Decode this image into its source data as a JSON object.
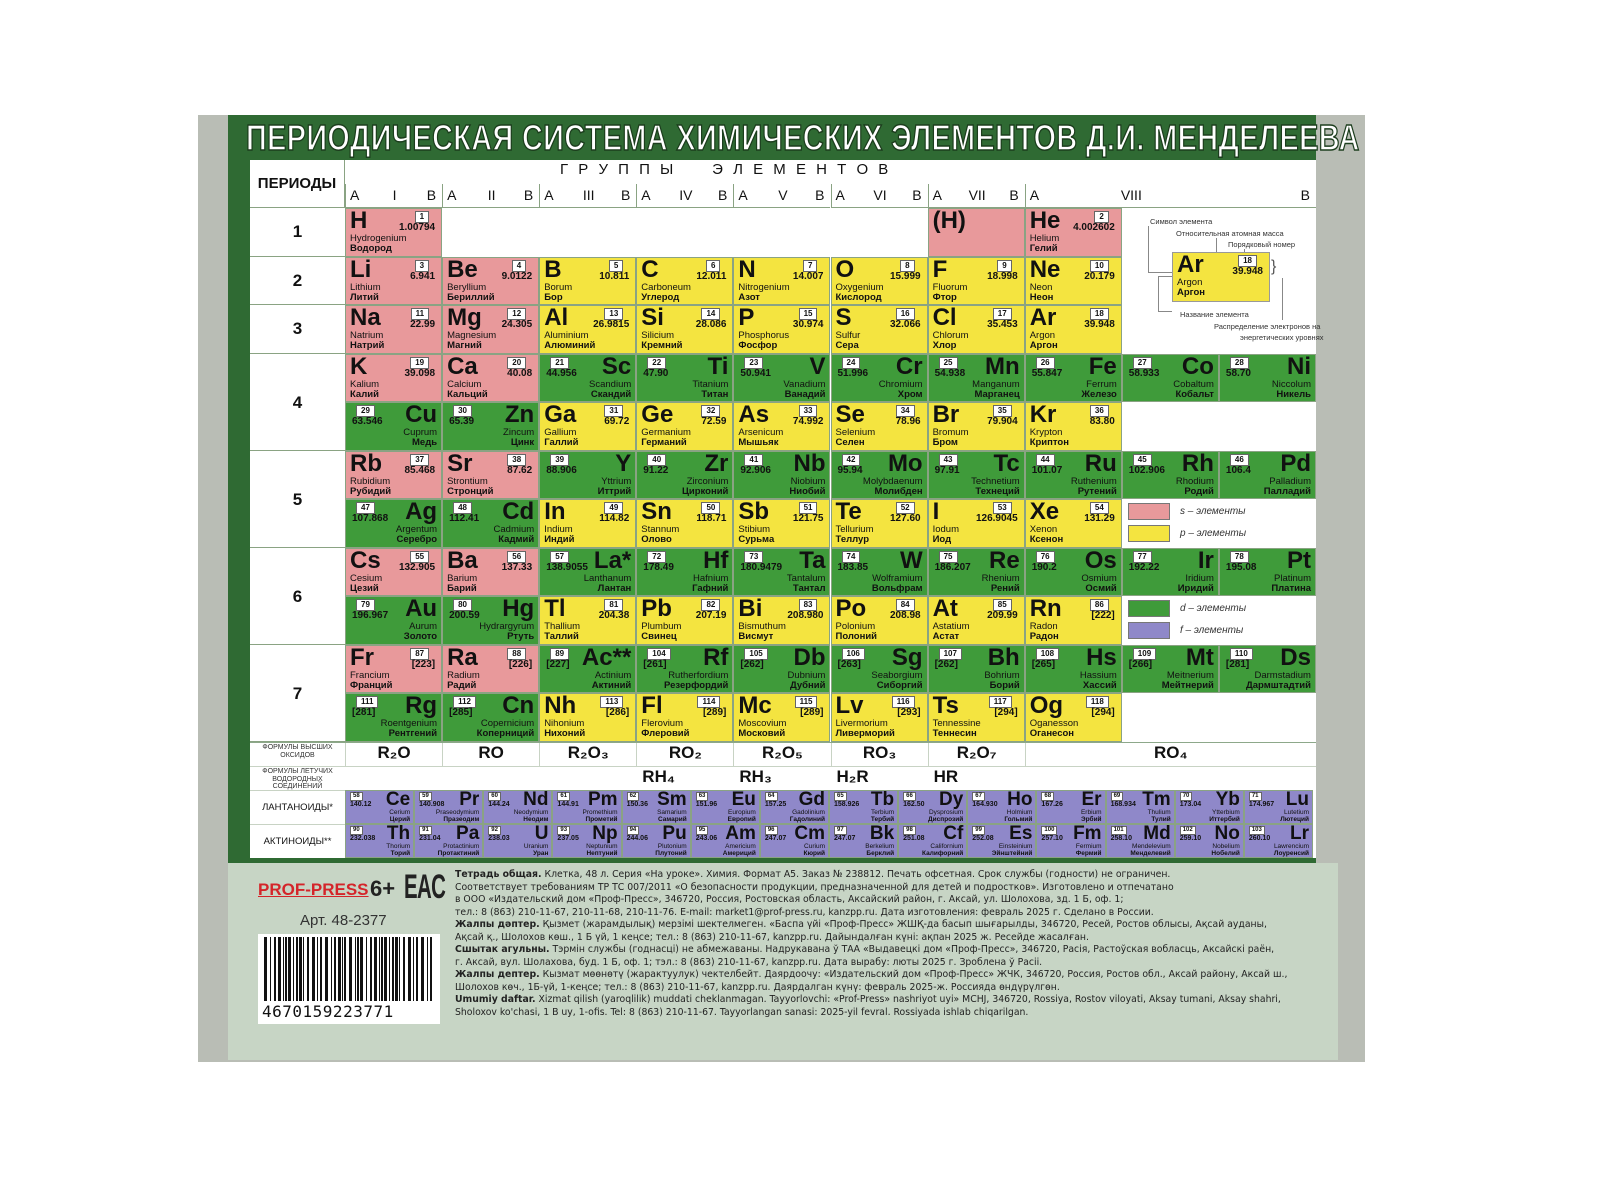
{
  "title": "ПЕРИОДИЧЕСКАЯ СИСТЕМА ХИМИЧЕСКИХ ЭЛЕМЕНТОВ Д.И. МЕНДЕЛЕЕВА",
  "colors": {
    "s": "#e8999b",
    "p": "#f4e440",
    "d": "#3f9b3a",
    "f": "#8f88c9",
    "board": "#2f6a33"
  },
  "table": {
    "periods_header": "ПЕРИОДЫ",
    "groups_title": "Г Р У П П Ы     Э Л Е М Е Н Т О В",
    "groups": [
      "I",
      "II",
      "III",
      "IV",
      "V",
      "VI",
      "VII",
      "VIII"
    ],
    "sub_a": "A",
    "sub_b": "B",
    "periods": [
      "1",
      "2",
      "3",
      "4",
      "5",
      "6",
      "7"
    ],
    "rows": [
      [
        [
          "H",
          1,
          "1.00794",
          "Hydrogenium",
          "Водород",
          "s"
        ],
        null,
        null,
        null,
        null,
        null,
        [
          "(H)",
          null,
          null,
          null,
          null,
          "s"
        ],
        [
          "He",
          2,
          "4.002602",
          "Helium",
          "Гелий",
          "s"
        ],
        null,
        null
      ],
      [
        [
          "Li",
          3,
          "6.941",
          "Lithium",
          "Литий",
          "s"
        ],
        [
          "Be",
          4,
          "9.0122",
          "Beryllium",
          "Бериллий",
          "s"
        ],
        [
          "B",
          5,
          "10.811",
          "Borum",
          "Бор",
          "p"
        ],
        [
          "C",
          6,
          "12.011",
          "Carboneum",
          "Углерод",
          "p"
        ],
        [
          "N",
          7,
          "14.007",
          "Nitrogenium",
          "Азот",
          "p"
        ],
        [
          "O",
          8,
          "15.999",
          "Oxygenium",
          "Кислород",
          "p"
        ],
        [
          "F",
          9,
          "18.998",
          "Fluorum",
          "Фтор",
          "p"
        ],
        [
          "Ne",
          10,
          "20.179",
          "Neon",
          "Неон",
          "p"
        ],
        null,
        null
      ],
      [
        [
          "Na",
          11,
          "22.99",
          "Natrium",
          "Натрий",
          "s"
        ],
        [
          "Mg",
          12,
          "24.305",
          "Magnesium",
          "Магний",
          "s"
        ],
        [
          "Al",
          13,
          "26.9815",
          "Aluminium",
          "Алюминий",
          "p"
        ],
        [
          "Si",
          14,
          "28.086",
          "Silicium",
          "Кремний",
          "p"
        ],
        [
          "P",
          15,
          "30.974",
          "Phosphorus",
          "Фосфор",
          "p"
        ],
        [
          "S",
          16,
          "32.066",
          "Sulfur",
          "Сера",
          "p"
        ],
        [
          "Cl",
          17,
          "35.453",
          "Chlorum",
          "Хлор",
          "p"
        ],
        [
          "Ar",
          18,
          "39.948",
          "Argon",
          "Аргон",
          "p"
        ],
        null,
        null
      ],
      [
        [
          "K",
          19,
          "39.098",
          "Kalium",
          "Калий",
          "s"
        ],
        [
          "Ca",
          20,
          "40.08",
          "Calcium",
          "Кальций",
          "s"
        ],
        [
          "Sc",
          21,
          "44.956",
          "Scandium",
          "Скандий",
          "d"
        ],
        [
          "Ti",
          22,
          "47.90",
          "Titanium",
          "Титан",
          "d"
        ],
        [
          "V",
          23,
          "50.941",
          "Vanadium",
          "Ванадий",
          "d"
        ],
        [
          "Cr",
          24,
          "51.996",
          "Chromium",
          "Хром",
          "d"
        ],
        [
          "Mn",
          25,
          "54.938",
          "Manganum",
          "Марганец",
          "d"
        ],
        [
          "Fe",
          26,
          "55.847",
          "Ferrum",
          "Железо",
          "d"
        ],
        [
          "Co",
          27,
          "58.933",
          "Cobaltum",
          "Кобальт",
          "d"
        ],
        [
          "Ni",
          28,
          "58.70",
          "Niccolum",
          "Никель",
          "d"
        ]
      ],
      [
        [
          "Cu",
          29,
          "63.546",
          "Cuprum",
          "Медь",
          "d"
        ],
        [
          "Zn",
          30,
          "65.39",
          "Zincum",
          "Цинк",
          "d"
        ],
        [
          "Ga",
          31,
          "69.72",
          "Gallium",
          "Галлий",
          "p"
        ],
        [
          "Ge",
          32,
          "72.59",
          "Germanium",
          "Германий",
          "p"
        ],
        [
          "As",
          33,
          "74.992",
          "Arsenicum",
          "Мышьяк",
          "p"
        ],
        [
          "Se",
          34,
          "78.96",
          "Selenium",
          "Селен",
          "p"
        ],
        [
          "Br",
          35,
          "79.904",
          "Bromum",
          "Бром",
          "p"
        ],
        [
          "Kr",
          36,
          "83.80",
          "Krypton",
          "Криптон",
          "p"
        ],
        null,
        null
      ],
      [
        [
          "Rb",
          37,
          "85.468",
          "Rubidium",
          "Рубидий",
          "s"
        ],
        [
          "Sr",
          38,
          "87.62",
          "Strontium",
          "Стронций",
          "s"
        ],
        [
          "Y",
          39,
          "88.906",
          "Yttrium",
          "Иттрий",
          "d"
        ],
        [
          "Zr",
          40,
          "91.22",
          "Zirconium",
          "Цирконий",
          "d"
        ],
        [
          "Nb",
          41,
          "92.906",
          "Niobium",
          "Ниобий",
          "d"
        ],
        [
          "Mo",
          42,
          "95.94",
          "Molybdaenum",
          "Молибден",
          "d"
        ],
        [
          "Tc",
          43,
          "97.91",
          "Technetium",
          "Технеций",
          "d"
        ],
        [
          "Ru",
          44,
          "101.07",
          "Ruthenium",
          "Рутений",
          "d"
        ],
        [
          "Rh",
          45,
          "102.906",
          "Rhodium",
          "Родий",
          "d"
        ],
        [
          "Pd",
          46,
          "106.4",
          "Palladium",
          "Палладий",
          "d"
        ]
      ],
      [
        [
          "Ag",
          47,
          "107.868",
          "Argentum",
          "Серебро",
          "d"
        ],
        [
          "Cd",
          48,
          "112.41",
          "Cadmium",
          "Кадмий",
          "d"
        ],
        [
          "In",
          49,
          "114.82",
          "Indium",
          "Индий",
          "p"
        ],
        [
          "Sn",
          50,
          "118.71",
          "Stannum",
          "Олово",
          "p"
        ],
        [
          "Sb",
          51,
          "121.75",
          "Stibium",
          "Сурьма",
          "p"
        ],
        [
          "Te",
          52,
          "127.60",
          "Tellurium",
          "Теллур",
          "p"
        ],
        [
          "I",
          53,
          "126.9045",
          "Iodum",
          "Иод",
          "p"
        ],
        [
          "Xe",
          54,
          "131.29",
          "Xenon",
          "Ксенон",
          "p"
        ],
        null,
        null
      ],
      [
        [
          "Cs",
          55,
          "132.905",
          "Cesium",
          "Цезий",
          "s"
        ],
        [
          "Ba",
          56,
          "137.33",
          "Barium",
          "Барий",
          "s"
        ],
        [
          "La*",
          57,
          "138.9055",
          "Lanthanum",
          "Лантан",
          "d"
        ],
        [
          "Hf",
          72,
          "178.49",
          "Hafnium",
          "Гафний",
          "d"
        ],
        [
          "Ta",
          73,
          "180.9479",
          "Tantalum",
          "Тантал",
          "d"
        ],
        [
          "W",
          74,
          "183.85",
          "Wolframium",
          "Вольфрам",
          "d"
        ],
        [
          "Re",
          75,
          "186.207",
          "Rhenium",
          "Рений",
          "d"
        ],
        [
          "Os",
          76,
          "190.2",
          "Osmium",
          "Осмий",
          "d"
        ],
        [
          "Ir",
          77,
          "192.22",
          "Iridium",
          "Иридий",
          "d"
        ],
        [
          "Pt",
          78,
          "195.08",
          "Platinum",
          "Платина",
          "d"
        ]
      ],
      [
        [
          "Au",
          79,
          "196.967",
          "Aurum",
          "Золото",
          "d"
        ],
        [
          "Hg",
          80,
          "200.59",
          "Hydrargyrum",
          "Ртуть",
          "d"
        ],
        [
          "Tl",
          81,
          "204.38",
          "Thallium",
          "Таллий",
          "p"
        ],
        [
          "Pb",
          82,
          "207.19",
          "Plumbum",
          "Свинец",
          "p"
        ],
        [
          "Bi",
          83,
          "208.980",
          "Bismuthum",
          "Висмут",
          "p"
        ],
        [
          "Po",
          84,
          "208.98",
          "Polonium",
          "Полоний",
          "p"
        ],
        [
          "At",
          85,
          "209.99",
          "Astatium",
          "Астат",
          "p"
        ],
        [
          "Rn",
          86,
          "[222]",
          "Radon",
          "Радон",
          "p"
        ],
        null,
        null
      ],
      [
        [
          "Fr",
          87,
          "[223]",
          "Francium",
          "Франций",
          "s"
        ],
        [
          "Ra",
          88,
          "[226]",
          "Radium",
          "Радий",
          "s"
        ],
        [
          "Ac**",
          89,
          "[227]",
          "Actinium",
          "Актиний",
          "d"
        ],
        [
          "Rf",
          104,
          "[261]",
          "Rutherfordium",
          "Резерфордий",
          "d"
        ],
        [
          "Db",
          105,
          "[262]",
          "Dubnium",
          "Дубний",
          "d"
        ],
        [
          "Sg",
          106,
          "[263]",
          "Seaborgium",
          "Сиборгий",
          "d"
        ],
        [
          "Bh",
          107,
          "[262]",
          "Bohrium",
          "Борий",
          "d"
        ],
        [
          "Hs",
          108,
          "[265]",
          "Hassium",
          "Хассий",
          "d"
        ],
        [
          "Mt",
          109,
          "[266]",
          "Meitnerium",
          "Мейтнерий",
          "d"
        ],
        [
          "Ds",
          110,
          "[281]",
          "Darmstadium",
          "Дармштадтий",
          "d"
        ]
      ],
      [
        [
          "Rg",
          111,
          "[281]",
          "Roentgenium",
          "Рентгений",
          "d"
        ],
        [
          "Cn",
          112,
          "[285]",
          "Copernicium",
          "Коперниций",
          "d"
        ],
        [
          "Nh",
          113,
          "[286]",
          "Nihonium",
          "Нихоний",
          "p"
        ],
        [
          "Fl",
          114,
          "[289]",
          "Flerovium",
          "Флеровий",
          "p"
        ],
        [
          "Mc",
          115,
          "[289]",
          "Moscovium",
          "Московий",
          "p"
        ],
        [
          "Lv",
          116,
          "[293]",
          "Livermorium",
          "Ливерморий",
          "p"
        ],
        [
          "Ts",
          117,
          "[294]",
          "Tennessine",
          "Теннесин",
          "p"
        ],
        [
          "Og",
          118,
          "[294]",
          "Oganesson",
          "Оганесон",
          "p"
        ],
        null,
        null
      ]
    ],
    "oxides": {
      "label": "ФОРМУЛЫ ВЫСШИХ ОКСИДОВ",
      "values": [
        "R₂O",
        "RO",
        "R₂O₃",
        "RO₂",
        "R₂O₅",
        "RO₃",
        "R₂O₇",
        "RO₄"
      ]
    },
    "hydrides": {
      "label": "ФОРМУЛЫ ЛЕТУЧИХ ВОДОРОДНЫХ СОЕДИНЕНИЙ",
      "values": [
        "",
        "",
        "",
        "RH₄",
        "RH₃",
        "H₂R",
        "HR",
        ""
      ]
    },
    "lanthanides": {
      "label": "ЛАНТАНОИДЫ*",
      "cells": [
        [
          "Ce",
          58,
          "140.12",
          "Cerium",
          "Церий"
        ],
        [
          "Pr",
          59,
          "140.908",
          "Praseodymium",
          "Празеодим"
        ],
        [
          "Nd",
          60,
          "144.24",
          "Neodymium",
          "Неодим"
        ],
        [
          "Pm",
          61,
          "144.91",
          "Promethium",
          "Прометий"
        ],
        [
          "Sm",
          62,
          "150.36",
          "Samarium",
          "Самарий"
        ],
        [
          "Eu",
          63,
          "151.96",
          "Europium",
          "Европий"
        ],
        [
          "Gd",
          64,
          "157.25",
          "Gadolinium",
          "Гадолиний"
        ],
        [
          "Tb",
          65,
          "158.926",
          "Terbium",
          "Тербий"
        ],
        [
          "Dy",
          66,
          "162.50",
          "Dysprosium",
          "Диспрозий"
        ],
        [
          "Ho",
          67,
          "164.930",
          "Holmium",
          "Гольмий"
        ],
        [
          "Er",
          68,
          "167.26",
          "Erbium",
          "Эрбий"
        ],
        [
          "Tm",
          69,
          "168.934",
          "Thulium",
          "Тулий"
        ],
        [
          "Yb",
          70,
          "173.04",
          "Ytterbium",
          "Иттербий"
        ],
        [
          "Lu",
          71,
          "174.967",
          "Lutetium",
          "Лютеций"
        ]
      ]
    },
    "actinides": {
      "label": "АКТИНОИДЫ**",
      "cells": [
        [
          "Th",
          90,
          "232.038",
          "Thorium",
          "Торий"
        ],
        [
          "Pa",
          91,
          "231.04",
          "Protactinium",
          "Протактиний"
        ],
        [
          "U",
          92,
          "238.03",
          "Uranium",
          "Уран"
        ],
        [
          "Np",
          93,
          "237.05",
          "Neptunium",
          "Нептуний"
        ],
        [
          "Pu",
          94,
          "244.06",
          "Plutonium",
          "Плутоний"
        ],
        [
          "Am",
          95,
          "243.06",
          "Americium",
          "Америций"
        ],
        [
          "Cm",
          96,
          "247.07",
          "Curium",
          "Кюрий"
        ],
        [
          "Bk",
          97,
          "247.07",
          "Berkelium",
          "Берклий"
        ],
        [
          "Cf",
          98,
          "251.08",
          "Californium",
          "Калифорний"
        ],
        [
          "Es",
          99,
          "252.08",
          "Einsteinium",
          "Эйнштейний"
        ],
        [
          "Fm",
          100,
          "257.10",
          "Fermium",
          "Фермий"
        ],
        [
          "Md",
          101,
          "258.10",
          "Mendelevium",
          "Менделевий"
        ],
        [
          "No",
          102,
          "259.10",
          "Nobelium",
          "Нобелий"
        ],
        [
          "Lr",
          103,
          "260.10",
          "Lawrencium",
          "Лоуренсий"
        ]
      ]
    }
  },
  "key": {
    "symbol_label": "Символ элемента",
    "mass_label": "Относительная атомная масса",
    "number_label": "Порядковый номер",
    "name_label": "Название элемента",
    "electrons_label_1": "Распределение электронов на",
    "electrons_label_2": "энергетических уровнях",
    "example": {
      "symbol": "Ar",
      "number": "18",
      "mass": "39.948",
      "latin": "Argon",
      "russian": "Аргон"
    }
  },
  "legend": [
    {
      "block": "s",
      "label": "s – элементы"
    },
    {
      "block": "p",
      "label": "p – элементы"
    },
    {
      "block": "d",
      "label": "d – элементы"
    },
    {
      "block": "f",
      "label": "f – элементы"
    }
  ],
  "info": {
    "brand": "PROF-PRESS",
    "age": "6+",
    "eac": "EAC",
    "article": "Арт. 48-2377",
    "barcode": "4670159223771",
    "lines": [
      {
        "b": "Тетрадь общая.",
        "t": " Клетка, 48 л. Серия «На уроке». Химия. Формат А5. Заказ № 238812. Печать офсетная. Срок службы (годности) не ограничен."
      },
      {
        "b": "",
        "t": "Соответствует требованиям ТР ТС 007/2011 «О безопасности продукции, предназначенной для детей и подростков». Изготовлено и отпечатано"
      },
      {
        "b": "",
        "t": "в ООО «Издательский дом «Проф-Пресс», 346720, Россия, Ростовская область, Аксайский район, г. Аксай, ул. Шолохова, зд. 1 Б, оф. 1;"
      },
      {
        "b": "",
        "t": "тел.: 8 (863) 210-11-67, 210-11-68, 210-11-76. E-mail: market1@prof-press.ru, kanzpp.ru. Дата изготовления: февраль 2025 г. Сделано в России."
      },
      {
        "b": "Жалпы дәптер.",
        "t": " Қызмет (жарамдылық) мерзімі шектелмеген. «Баспа үйі «Проф-Пресс» ЖШҚ-да басып шығарылды, 346720, Ресей, Ростов облысы, Ақсай ауданы,"
      },
      {
        "b": "",
        "t": "Ақсай қ., Шолохов көш., 1 Б үй, 1 кеңсе; тел.: 8 (863) 210-11-67, kanzpp.ru. Дайындалған күні: ақпан 2025 ж. Ресейде жасалған."
      },
      {
        "b": "Сшытак агульны.",
        "t": " Тэрмін службы (годнасці) не абмежаваны. Надрукавана ў ТАА «Выдавецкі дом «Проф-Пресс», 346720, Расія, Растоўская вобласць, Аксайскі раён,"
      },
      {
        "b": "",
        "t": "г. Аксай, вул. Шолахова, буд. 1 Б, оф. 1; тэл.: 8 (863) 210-11-67, kanzpp.ru. Дата вырабу: люты 2025 г. Зроблена ў Расіі."
      },
      {
        "b": "Жалпы дептер.",
        "t": " Кызмат мөөнөтү (жарактуулук) чектелбейт. Даярдоочу: «Издательский дом «Проф-Пресс» ЖЧК, 346720, Россия, Ростов обл., Аксай району, Аксай ш.,"
      },
      {
        "b": "",
        "t": "Шолохов көч., 1Б-үй, 1-кеңсе; тел.: 8 (863) 210-11-67, kanzpp.ru. Даярдалган күнү: февраль 2025-ж. Россияда өндүрүлгөн."
      },
      {
        "b": "Umumiy daftar.",
        "t": " Xizmat qilish (yaroqlilik) muddati cheklanmagan. Tayyorlovchi: «Prof-Press» nashriyot uyi» MCHJ, 346720, Rossiya, Rostov viloyati, Aksay tumani, Aksay shahri,"
      },
      {
        "b": "",
        "t": "Sholoxov ko'chasi, 1 B uy, 1-ofis. Tel: 8 (863) 210-11-67. Tayyorlangan sanasi: 2025-yil fevral. Rossiyada ishlab chiqarilgan."
      }
    ]
  }
}
